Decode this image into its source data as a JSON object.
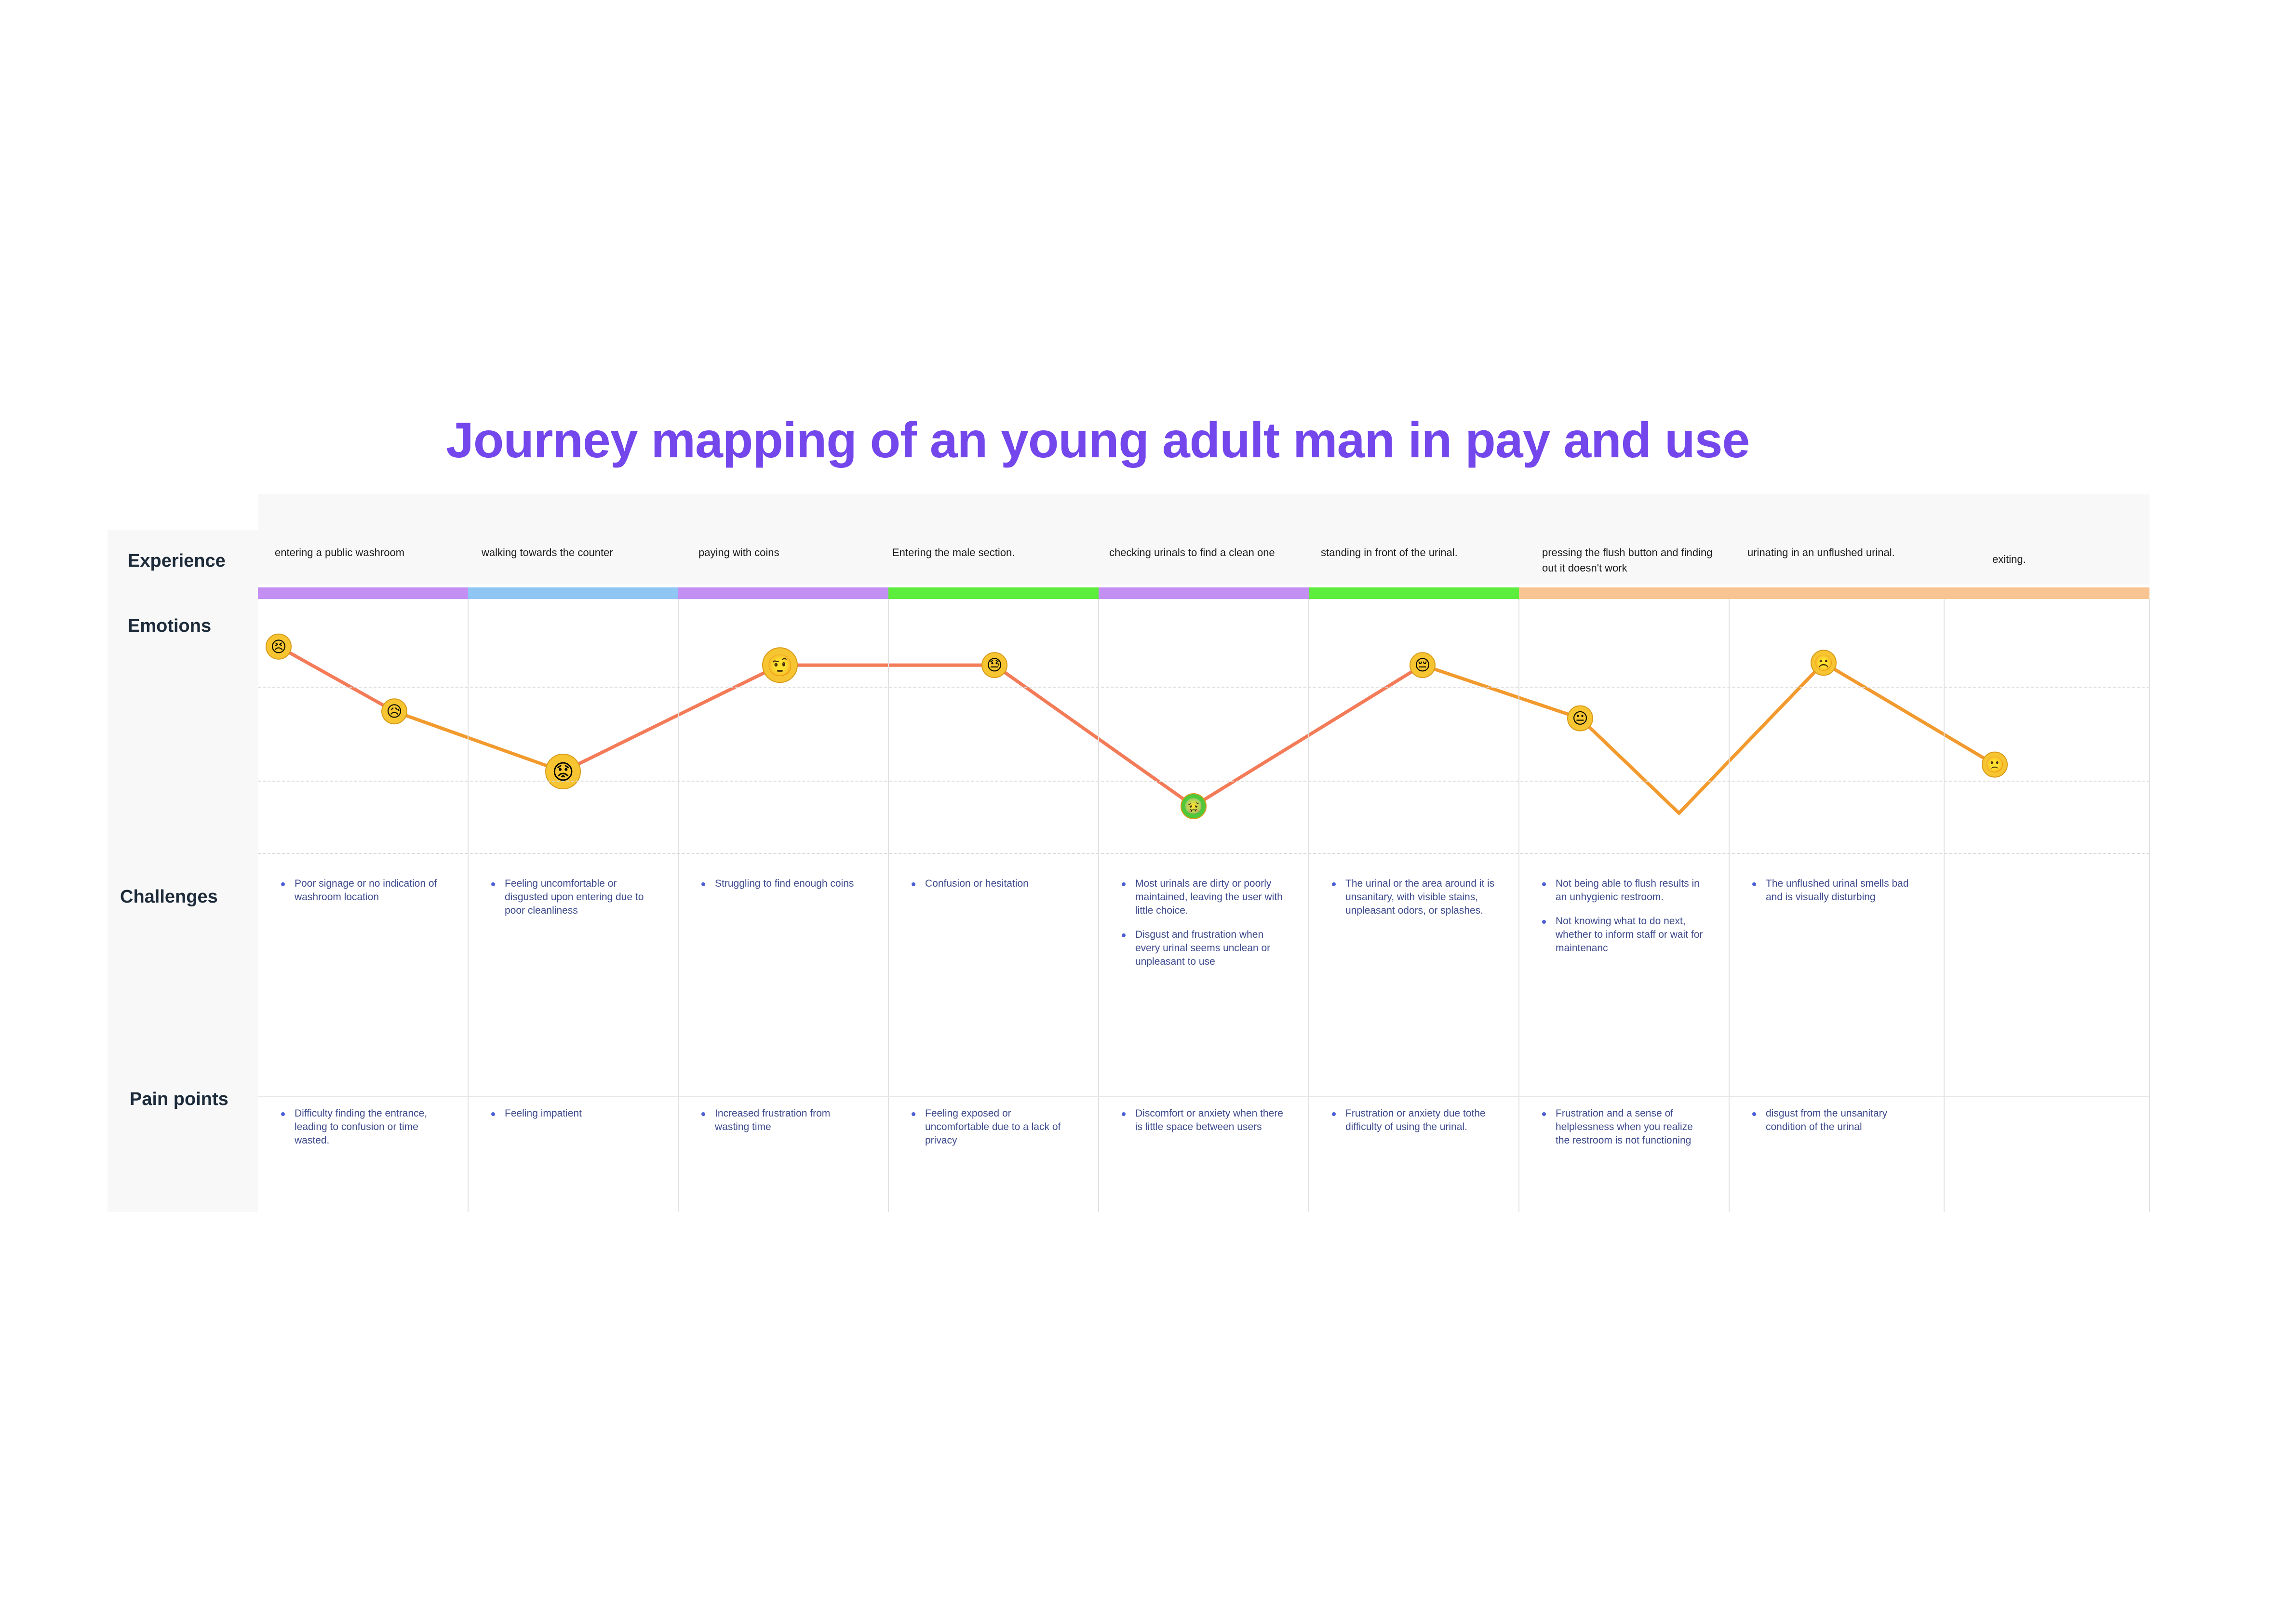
{
  "title": "Journey mapping of an young adult man in pay and use",
  "row_labels": {
    "experience": "Experience",
    "emotions": "Emotions",
    "challenges": "Challenges",
    "pain_points": "Pain points"
  },
  "stages": [
    {
      "experience": "entering a public washroom",
      "bar_color": "#c48ff2",
      "challenges": [
        "Poor signage or no indication of washroom location"
      ],
      "pain_points": [
        "Difficulty finding the entrance, leading to confusion or time wasted."
      ]
    },
    {
      "experience": "walking towards the counter",
      "bar_color": "#90c6f3",
      "challenges": [
        "Feeling uncomfortable or disgusted upon entering due to poor cleanliness"
      ],
      "pain_points": [
        "Feeling impatient"
      ]
    },
    {
      "experience": "paying with coins",
      "bar_color": "#c48ff2",
      "challenges": [
        "Struggling to find enough coins"
      ],
      "pain_points": [
        "Increased frustration from wasting time"
      ]
    },
    {
      "experience": "Entering the male section.",
      "bar_color": "#5ced3d",
      "challenges": [
        "Confusion or hesitation"
      ],
      "pain_points": [
        "Feeling exposed or uncomfortable due to a lack of privacy"
      ]
    },
    {
      "experience": "checking urinals to find a clean one",
      "bar_color": "#c48ff2",
      "challenges": [
        "Most urinals are dirty or poorly maintained, leaving the user with little choice.",
        "Disgust and frustration when every urinal seems unclean or unpleasant to use"
      ],
      "pain_points": [
        "Discomfort or anxiety when there is little space between users"
      ]
    },
    {
      "experience": "standing in front of the urinal.",
      "bar_color": "#5ced3d",
      "challenges": [
        "The urinal or the area around it is unsanitary, with visible stains, unpleasant odors, or splashes."
      ],
      "pain_points": [
        "Frustration or anxiety due tothe difficulty of using the urinal."
      ]
    },
    {
      "experience": "pressing the flush button and finding out it doesn't work",
      "bar_color": "#f8c592",
      "challenges": [
        "Not being able to flush results in an unhygienic restroom.",
        "Not knowing what to do next, whether to inform staff or wait for maintenanc"
      ],
      "pain_points": [
        "Frustration and a sense of helplessness when you realize the restroom is not functioning"
      ]
    },
    {
      "experience": "urinating in an unflushed urinal.",
      "bar_color": "#f8c592",
      "challenges": [
        "The unflushed urinal smells bad and is visually disturbing"
      ],
      "pain_points": [
        "disgust from the unsanitary condition of the urinal"
      ]
    },
    {
      "experience": "exiting.",
      "bar_color": "#f8c592",
      "challenges": [],
      "pain_points": []
    }
  ],
  "emotion_curve": {
    "points": [
      {
        "emoji": "😣",
        "level": 0.84
      },
      {
        "emoji": "😥",
        "level": 0.56
      },
      {
        "emoji": "😟",
        "level": 0.3
      },
      {
        "emoji": "🤨",
        "level": 0.76
      },
      {
        "emoji": "😓",
        "level": 0.76
      },
      {
        "emoji": "🤢",
        "level": 0.15
      },
      {
        "emoji": "😔",
        "level": 0.76
      },
      {
        "emoji": "😐",
        "level": 0.53
      },
      {
        "emoji": "",
        "level": 0.12
      },
      {
        "emoji": "☹️",
        "level": 0.77
      },
      {
        "emoji": "🙁",
        "level": 0.33
      }
    ],
    "colors": [
      "#f47b58",
      "#f29a2e",
      "#f47b58",
      "#f47b58",
      "#f47b58",
      "#f47b58",
      "#f29a2e",
      "#f29a2e",
      "#f29a2e",
      "#f29a2e"
    ]
  }
}
